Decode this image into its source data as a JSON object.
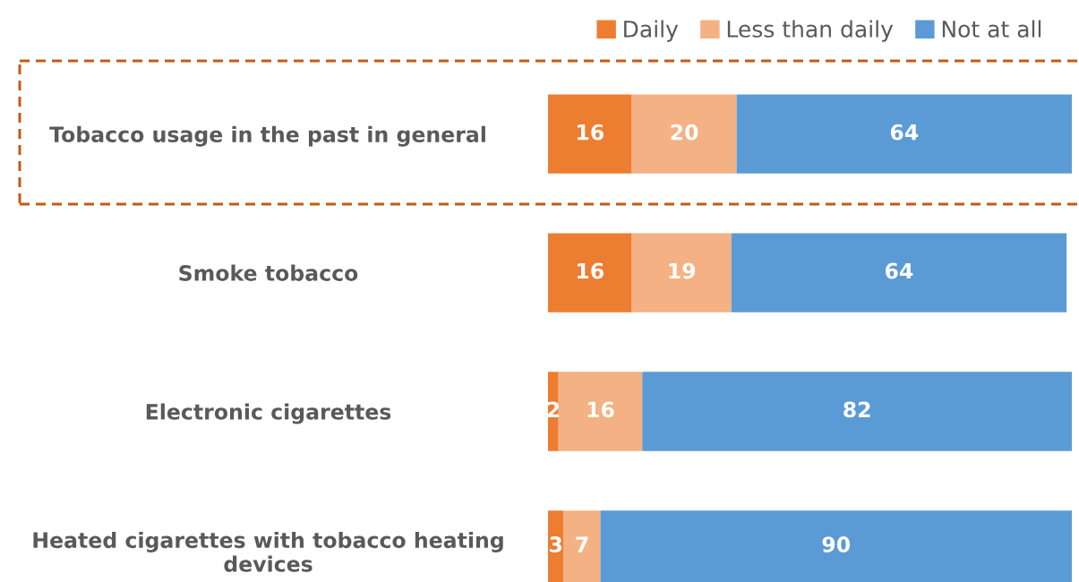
{
  "chart_data": {
    "type": "bar",
    "orientation": "horizontal",
    "stacked": true,
    "data_labels": true,
    "legend": "top right",
    "grid": false,
    "tick_labels": "y",
    "categories": [
      "Tobacco usage in the past in general",
      "Smoke tobacco",
      "Electronic cigarettes",
      "Heated cigarettes with tobacco heating devices"
    ],
    "series": [
      {
        "name": "Daily",
        "color": "#ed7d31",
        "values": [
          16,
          16,
          2,
          3
        ]
      },
      {
        "name": "Less than daily",
        "color": "#f4b183",
        "values": [
          20,
          19,
          16,
          7
        ]
      },
      {
        "name": "Not at all",
        "color": "#5b9bd5",
        "values": [
          64,
          64,
          82,
          90
        ]
      }
    ]
  }
}
